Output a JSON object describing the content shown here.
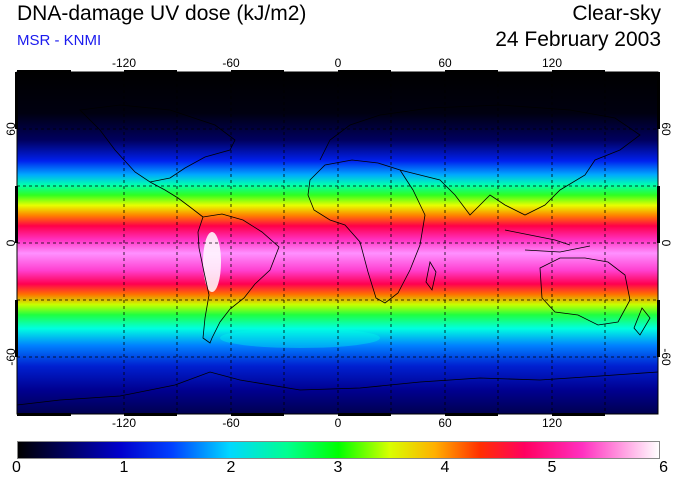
{
  "header": {
    "title": "DNA-damage UV dose (kJ/m2)",
    "subtitle": "MSR - KNMI",
    "sky_condition": "Clear-sky",
    "date": "24 February 2003"
  },
  "colors": {
    "subtitle": "#1a1aee",
    "coast": "#000000",
    "grid": "#000000"
  },
  "map": {
    "projection": "equirectangular",
    "lon_range": [
      -180,
      180
    ],
    "lat_range": [
      -90,
      90
    ],
    "lon_ticks": [
      "-120",
      "-60",
      "0",
      "60",
      "120"
    ],
    "lat_ticks_left": [
      "60",
      "0",
      "-60"
    ],
    "lat_ticks_right": [
      "60",
      "0",
      "-60"
    ]
  },
  "colorbar": {
    "min": 0,
    "max": 6,
    "labels": [
      "0",
      "1",
      "2",
      "3",
      "4",
      "5",
      "6"
    ]
  }
}
